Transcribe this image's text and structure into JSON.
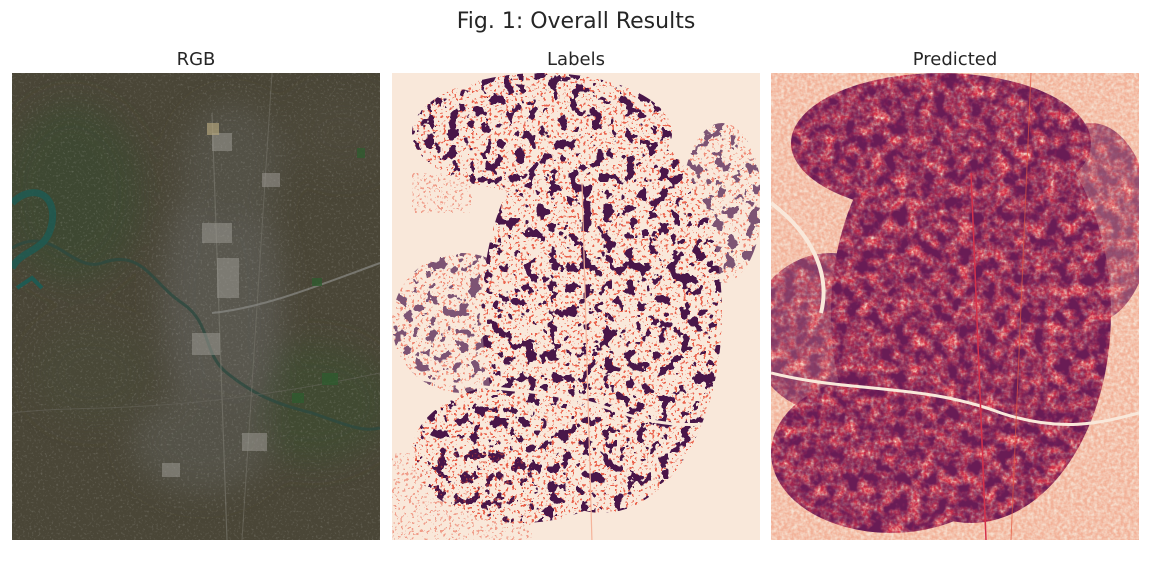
{
  "figure": {
    "title": "Fig. 1: Overall Results"
  },
  "panels": [
    {
      "title": "RGB",
      "image": "satellite-rgb-image"
    },
    {
      "title": "Labels",
      "image": "label-heatmap-image"
    },
    {
      "title": "Predicted",
      "image": "predicted-heatmap-image"
    }
  ],
  "colors": {
    "rgb_base": "#4a4637",
    "rgb_vegetation": "#3f4a33",
    "rgb_urban": "#8a8a86",
    "rgb_water": "#1f5a52",
    "heat_low": "#f9e8da",
    "heat_mid": "#e8553e",
    "heat_high": "#4a1648"
  }
}
